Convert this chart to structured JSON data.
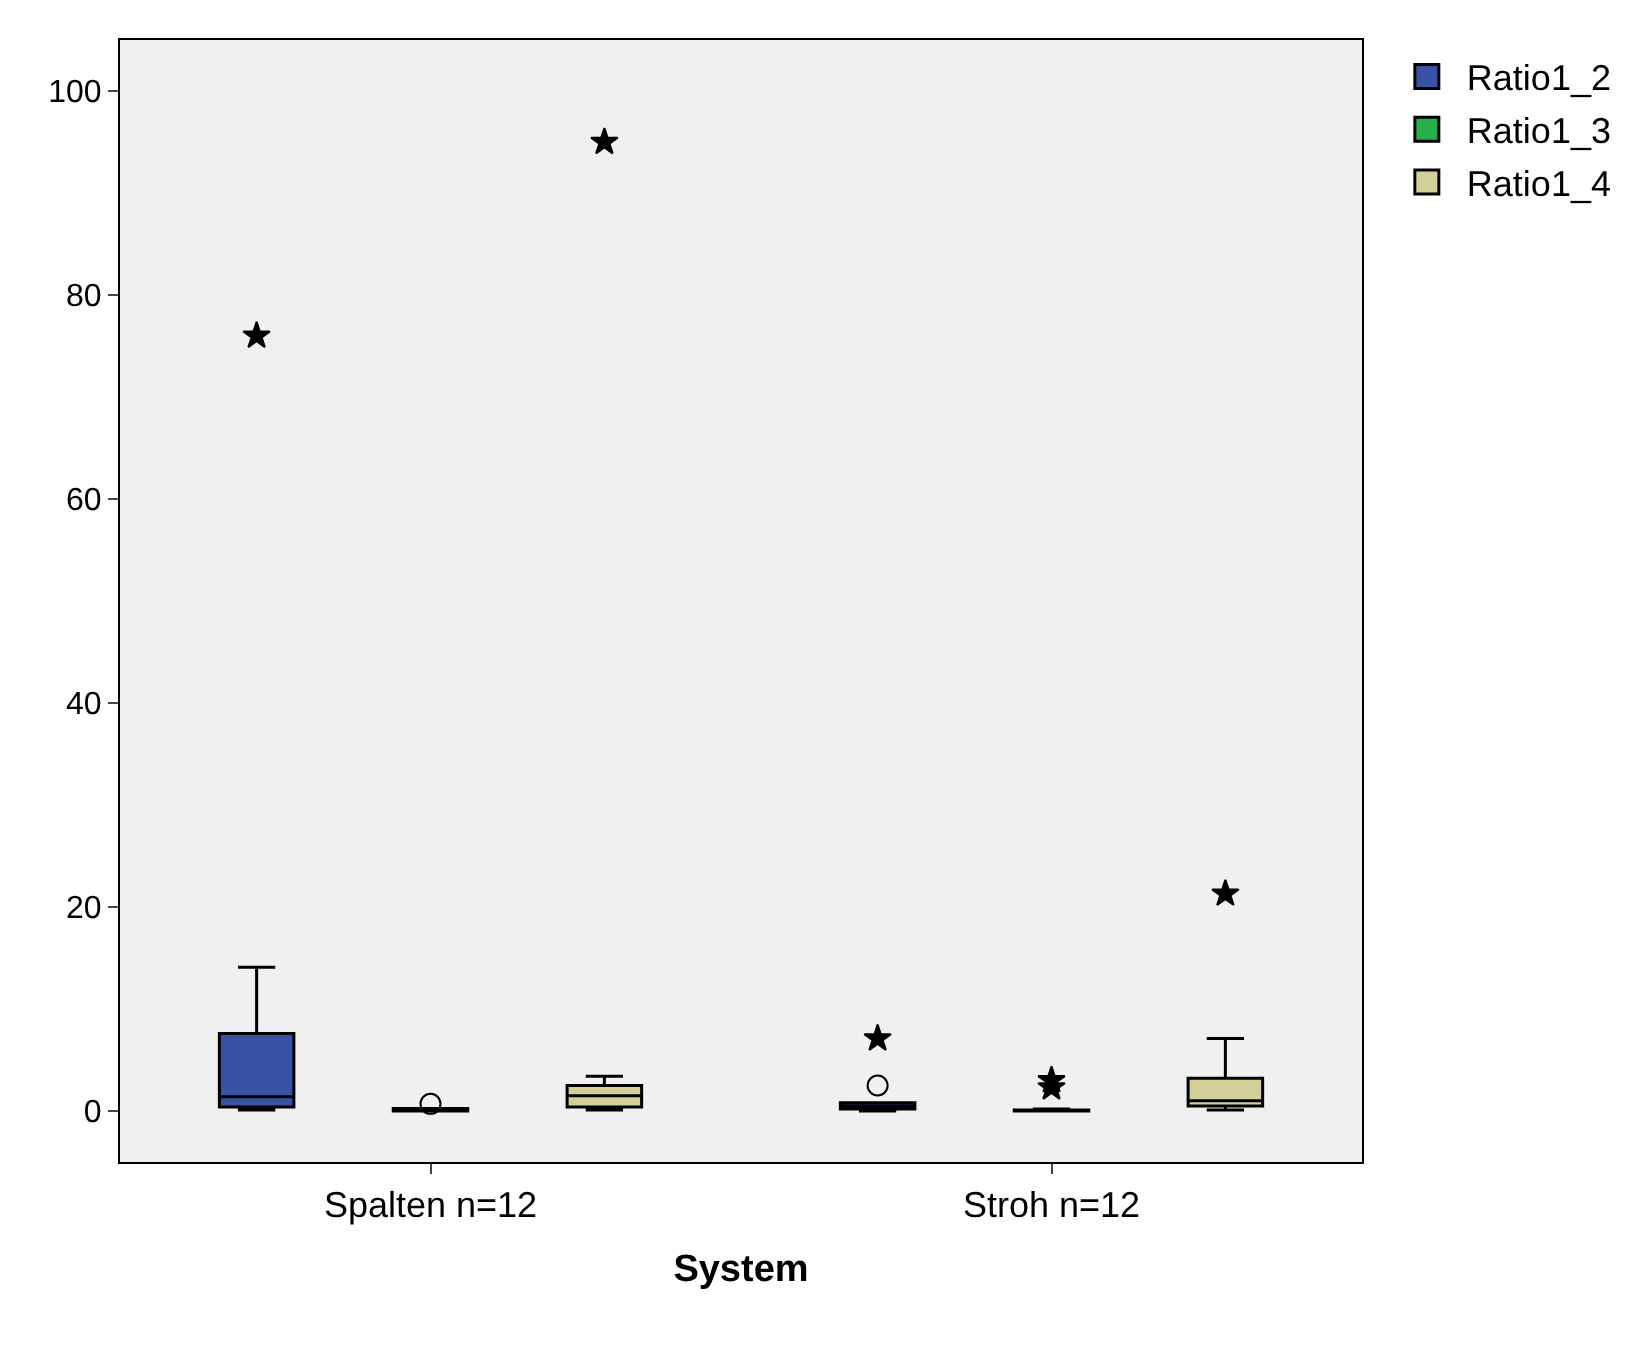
{
  "chart_data": {
    "type": "box",
    "xlabel": "System",
    "categories": [
      "Spalten n=12",
      "Stroh n=12"
    ],
    "ylim": [
      -5,
      105
    ],
    "yticks": [
      0,
      20,
      40,
      60,
      80,
      100
    ],
    "grid": false,
    "legend": "top right",
    "series": [
      {
        "name": "Ratio1_2",
        "color": "#3953a4",
        "boxes": [
          {
            "low": 0.1,
            "q1": 0.4,
            "median": 1.4,
            "q3": 7.6,
            "high": 14.1,
            "outliers": [
              76
            ]
          },
          {
            "low": 0,
            "q1": 0.2,
            "median": 0.5,
            "q3": 0.8,
            "high": 0.8,
            "outliers": [
              2.5,
              7.1
            ]
          }
        ]
      },
      {
        "name": "Ratio1_3",
        "color": "#2ab04a",
        "boxes": [
          {
            "low": 0,
            "q1": 0,
            "median": 0.1,
            "q3": 0.25,
            "high": 0.25,
            "outliers": [
              0.7
            ]
          },
          {
            "low": 0,
            "q1": 0,
            "median": 0.05,
            "q3": 0.1,
            "high": 0.2,
            "outliers": [
              2.3,
              3.0
            ]
          }
        ]
      },
      {
        "name": "Ratio1_4",
        "color": "#d4cf98",
        "boxes": [
          {
            "low": 0.1,
            "q1": 0.4,
            "median": 1.5,
            "q3": 2.5,
            "high": 3.4,
            "outliers": [
              95
            ]
          },
          {
            "low": 0.1,
            "q1": 0.5,
            "median": 1.0,
            "q3": 3.2,
            "high": 7.1,
            "outliers": [
              21.3
            ]
          }
        ]
      }
    ]
  }
}
